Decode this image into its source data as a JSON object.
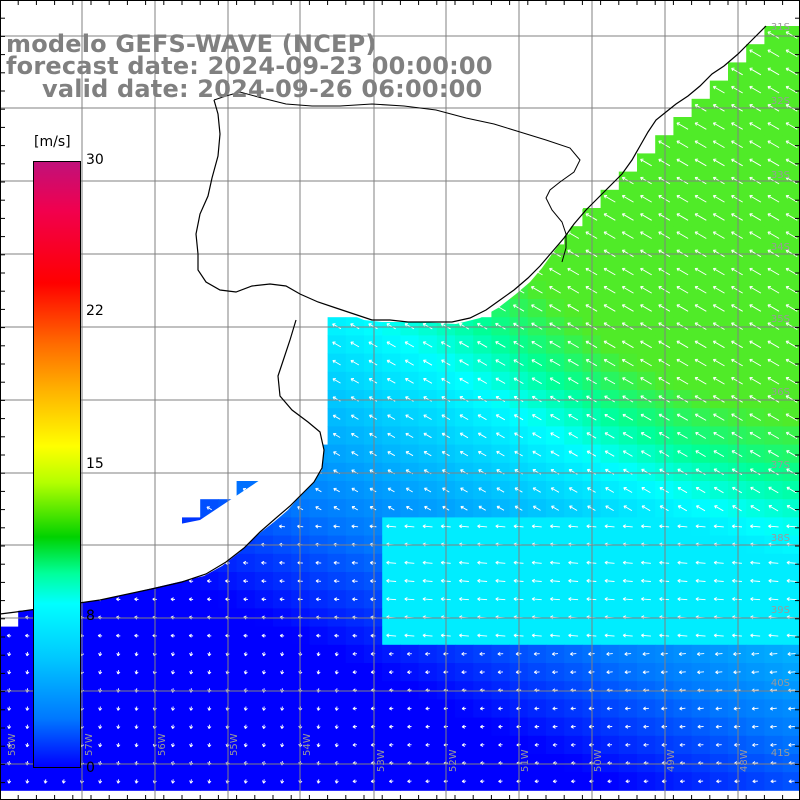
{
  "title": {
    "line1": "modelo GEFS-WAVE (NCEP)",
    "line2": "forecast date: 2024-09-23 00:00:00",
    "line3": "valid date: 2024-09-26 06:00:00"
  },
  "colorbar": {
    "unit": "[m/s]",
    "min": 0,
    "max": 30,
    "tick_labels": [
      "30",
      "22",
      "15",
      "8",
      "0"
    ]
  },
  "map": {
    "variable": "wind speed",
    "land_color": "#ffffff",
    "grid_color": "#808080",
    "arrow_color": "#ffffff",
    "latitude_labels": [
      "31S",
      "32S",
      "33S",
      "34S",
      "35S",
      "36S",
      "37S",
      "38S",
      "39S",
      "40S",
      "41S"
    ],
    "longitude_labels": [
      "58W",
      "57W",
      "56W",
      "55W",
      "54W",
      "53W",
      "52W",
      "51W",
      "50W",
      "49W",
      "48W"
    ]
  }
}
